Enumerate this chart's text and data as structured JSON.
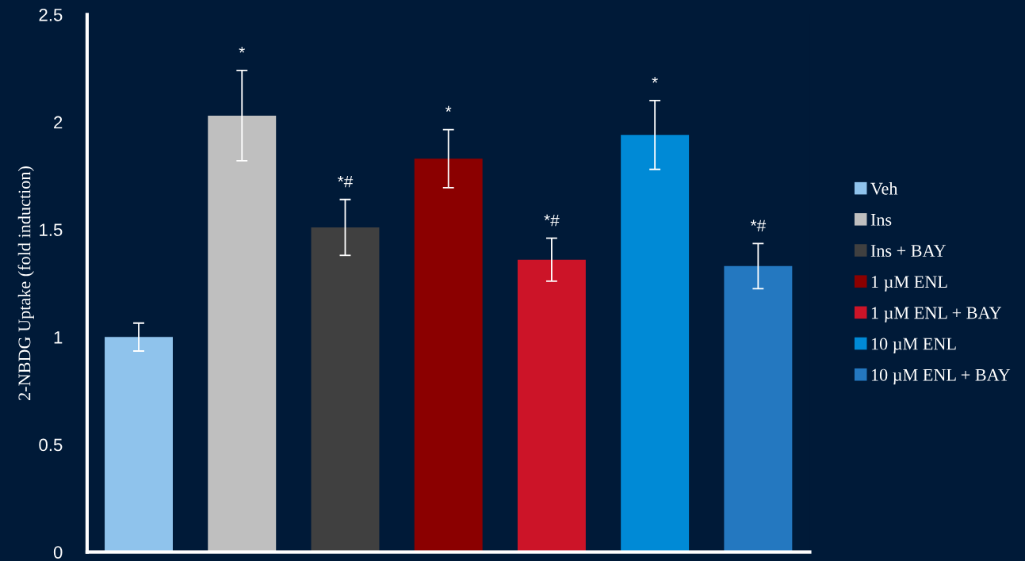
{
  "chart_data": {
    "type": "bar",
    "ylabel": "2-NBDG Uptake (fold induction)",
    "categories": [
      null,
      null,
      null,
      null,
      null,
      null,
      null
    ],
    "series": [
      {
        "name": "Veh",
        "color": "#8fc3ec",
        "values": [
          1.0,
          null,
          null,
          null,
          null,
          null,
          null
        ],
        "errors": [
          0.065,
          null,
          null,
          null,
          null,
          null,
          null
        ]
      },
      {
        "name": "Ins",
        "color": "#bfbfbf",
        "values": [
          null,
          2.03,
          null,
          null,
          null,
          null,
          null
        ],
        "errors": [
          null,
          0.21,
          null,
          null,
          null,
          null,
          null
        ]
      },
      {
        "name": "Ins + BAY",
        "color": "#404040",
        "values": [
          null,
          null,
          1.51,
          null,
          null,
          null,
          null
        ],
        "errors": [
          null,
          null,
          0.13,
          null,
          null,
          null,
          null
        ]
      },
      {
        "name": "1 µM ENL",
        "color": "#8b0000",
        "values": [
          null,
          null,
          null,
          1.83,
          null,
          null,
          null
        ],
        "errors": [
          null,
          null,
          null,
          0.135,
          null,
          null,
          null
        ]
      },
      {
        "name": "1 µM ENL + BAY",
        "color": "#cc1428",
        "values": [
          null,
          null,
          null,
          null,
          1.36,
          null,
          null
        ],
        "errors": [
          null,
          null,
          null,
          null,
          0.1,
          null,
          null
        ]
      },
      {
        "name": "10 µM ENL",
        "color": "#008ad6",
        "values": [
          null,
          null,
          null,
          null,
          null,
          1.94,
          null
        ],
        "errors": [
          null,
          null,
          null,
          null,
          null,
          0.16,
          null
        ]
      },
      {
        "name": "10 µM ENL + BAY",
        "color": "#2478c0",
        "values": [
          null,
          null,
          null,
          null,
          null,
          null,
          1.33
        ],
        "errors": [
          null,
          null,
          null,
          null,
          null,
          null,
          0.105
        ]
      }
    ],
    "annotations": [
      "*",
      "*#",
      "*",
      "*#",
      "*",
      "*#"
    ],
    "ylim": [
      0,
      2.5
    ],
    "yticks": [
      0,
      0.5,
      1,
      1.5,
      2,
      2.5
    ],
    "legend": "right"
  }
}
